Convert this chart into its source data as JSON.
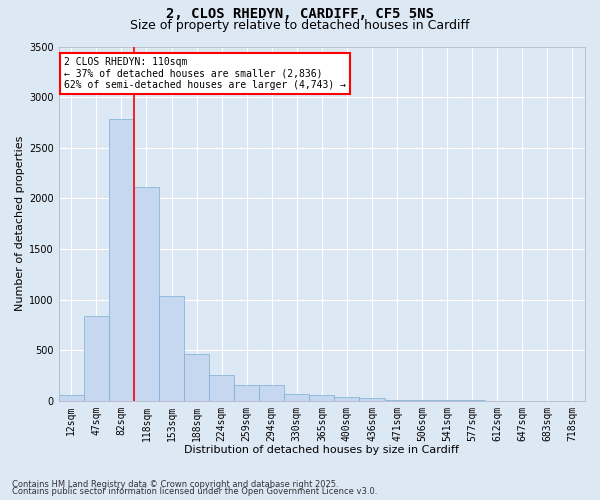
{
  "title_line1": "2, CLOS RHEDYN, CARDIFF, CF5 5NS",
  "title_line2": "Size of property relative to detached houses in Cardiff",
  "xlabel": "Distribution of detached houses by size in Cardiff",
  "ylabel": "Number of detached properties",
  "categories": [
    "12sqm",
    "47sqm",
    "82sqm",
    "118sqm",
    "153sqm",
    "188sqm",
    "224sqm",
    "259sqm",
    "294sqm",
    "330sqm",
    "365sqm",
    "400sqm",
    "436sqm",
    "471sqm",
    "506sqm",
    "541sqm",
    "577sqm",
    "612sqm",
    "647sqm",
    "683sqm",
    "718sqm"
  ],
  "values": [
    55,
    840,
    2780,
    2110,
    1030,
    460,
    250,
    155,
    155,
    70,
    60,
    35,
    25,
    5,
    5,
    5,
    5,
    2,
    2,
    2,
    2
  ],
  "bar_color": "#c5d8ef",
  "bar_edge_color": "#7aadd4",
  "vline_color": "red",
  "annotation_text": "2 CLOS RHEDYN: 110sqm\n← 37% of detached houses are smaller (2,836)\n62% of semi-detached houses are larger (4,743) →",
  "annotation_box_color": "red",
  "annotation_bg": "white",
  "ylim": [
    0,
    3500
  ],
  "yticks": [
    0,
    500,
    1000,
    1500,
    2000,
    2500,
    3000,
    3500
  ],
  "background_color": "#dde8f5",
  "grid_color": "#ffffff",
  "footer_line1": "Contains HM Land Registry data © Crown copyright and database right 2025.",
  "footer_line2": "Contains public sector information licensed under the Open Government Licence v3.0.",
  "title_fontsize": 10,
  "subtitle_fontsize": 9,
  "axis_label_fontsize": 8,
  "tick_fontsize": 7,
  "annot_fontsize": 7,
  "footer_fontsize": 6
}
